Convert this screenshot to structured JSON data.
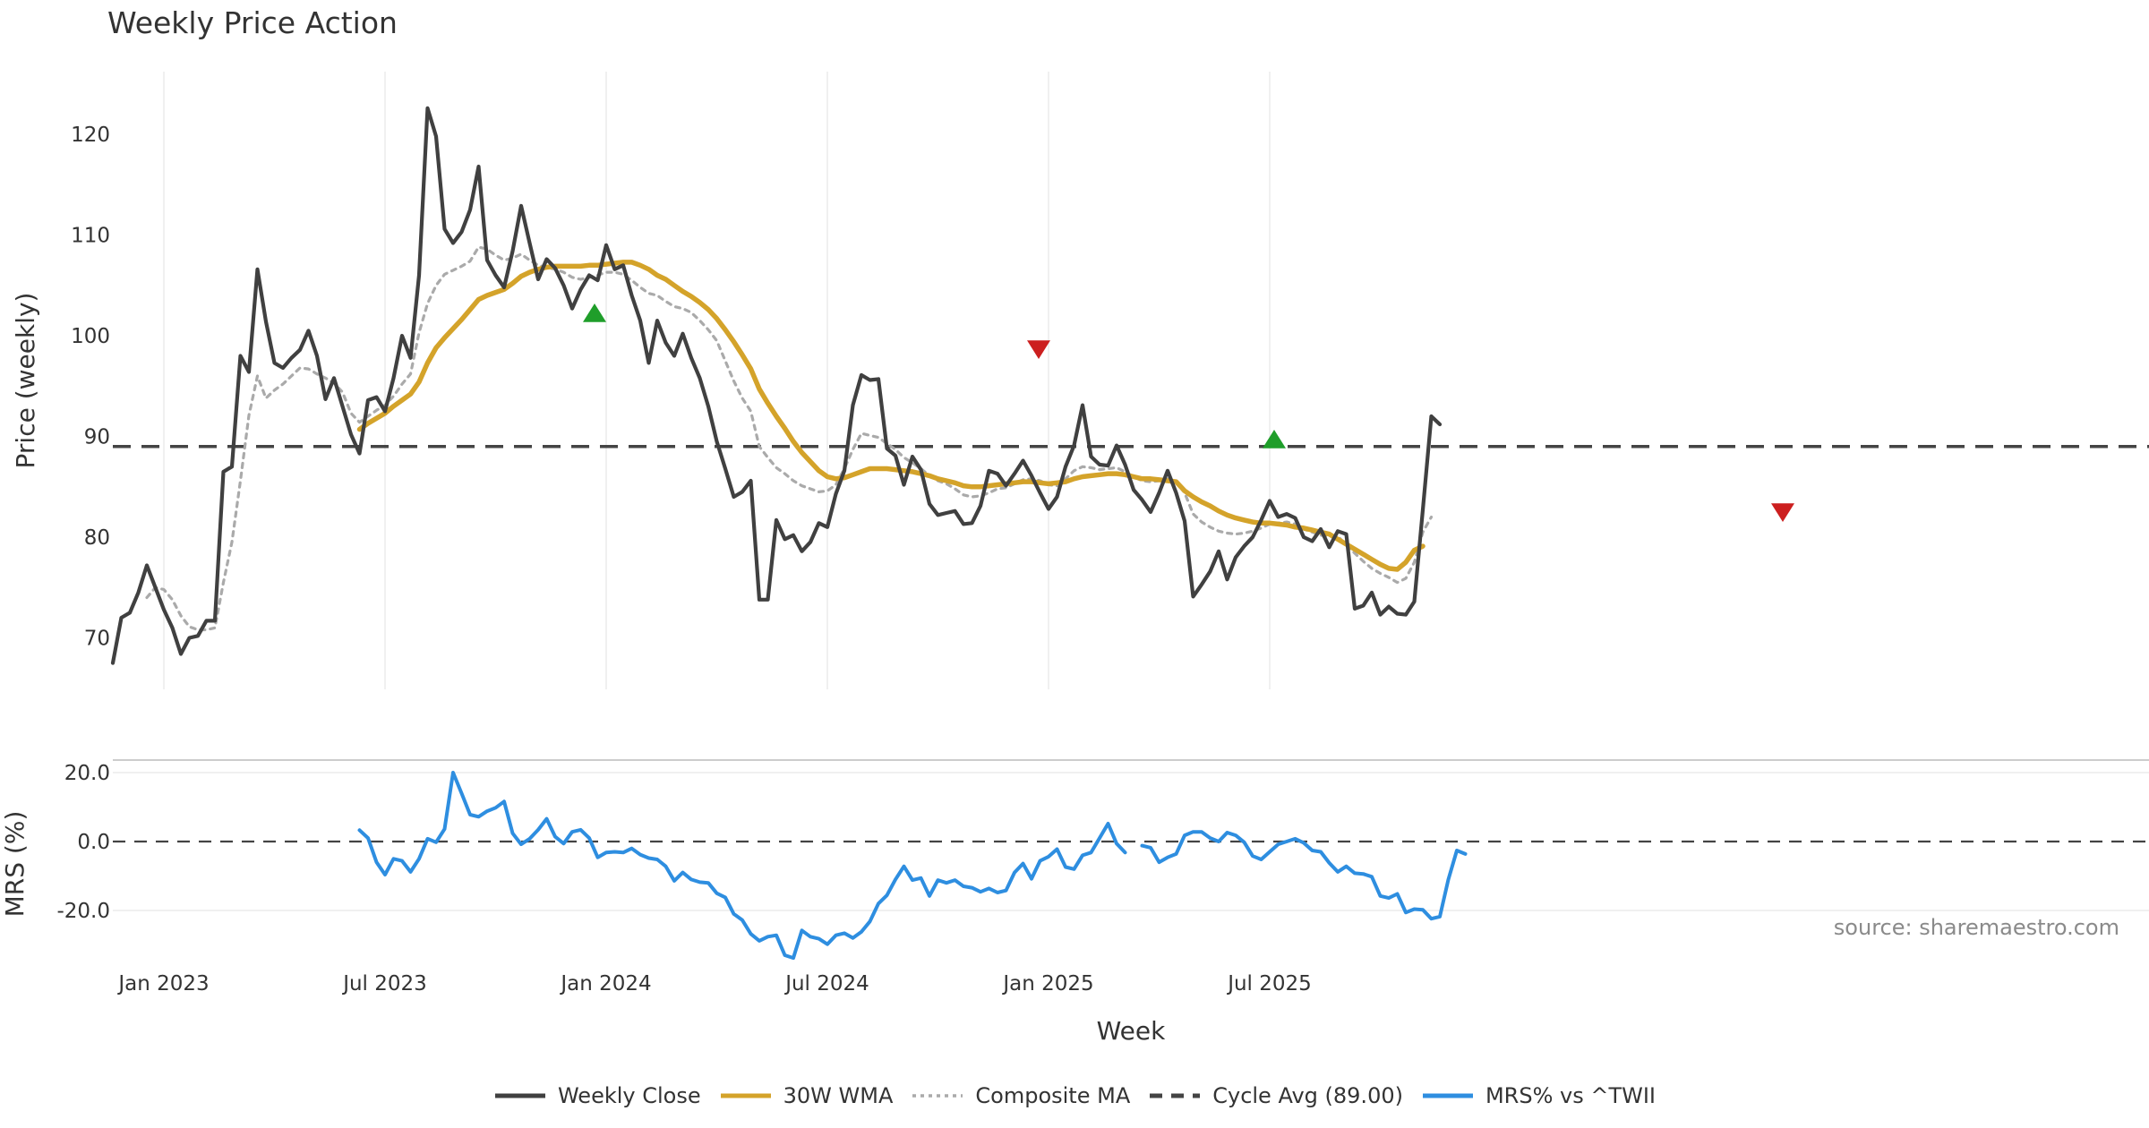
{
  "title": "Weekly Price Action",
  "source_note": "source: sharemaestro.com",
  "legend": [
    {
      "label": "Weekly Close",
      "color": "#404040",
      "style": "solid"
    },
    {
      "label": "30W WMA",
      "color": "#d4a32a",
      "style": "solid"
    },
    {
      "label": "Composite MA",
      "color": "#aaaaaa",
      "style": "dotted"
    },
    {
      "label": "Cycle Avg (89.00)",
      "color": "#444444",
      "style": "dashed"
    },
    {
      "label": "MRS% vs ^TWII",
      "color": "#2e8ee0",
      "style": "solid"
    }
  ],
  "chart_data": [
    {
      "type": "line",
      "title": "Weekly Price Action",
      "xlabel": "",
      "ylabel": "Price (weekly)",
      "ylim": [
        65,
        126
      ],
      "x_tick_labels": [
        "Jan 2023",
        "Jul 2023",
        "Jan 2024",
        "Jul 2024",
        "Jan 2025",
        "Jul 2025"
      ],
      "x_tick_weeks": [
        6,
        32,
        58,
        84,
        110,
        136
      ],
      "y_ticks": [
        70,
        80,
        90,
        100,
        110,
        120
      ],
      "x_unit": "week index (0 = first weekly bar)",
      "cycle_avg": 89.0,
      "series": [
        {
          "name": "Weekly Close",
          "color": "#404040",
          "values": [
            67.5,
            72,
            72.5,
            74.5,
            77.2,
            75,
            72.8,
            71,
            68.4,
            70,
            70.2,
            71.7,
            71.7,
            86.5,
            87,
            98,
            96.4,
            106.6,
            101.4,
            97.3,
            96.8,
            97.8,
            98.6,
            100.5,
            98,
            93.7,
            95.8,
            93,
            90.2,
            88.3,
            93.6,
            93.9,
            92.5,
            95.8,
            100,
            97.8,
            106,
            122.6,
            119.8,
            110.6,
            109.2,
            110.3,
            112.5,
            116.8,
            107.5,
            106,
            104.8,
            108.4,
            112.9,
            109.2,
            105.6,
            107.6,
            106.7,
            105,
            102.7,
            104.6,
            106,
            105.5,
            109,
            106.6,
            107,
            104,
            101.5,
            97.3,
            101.5,
            99.3,
            98,
            100.2,
            97.8,
            95.8,
            93,
            89.5,
            86.8,
            84,
            84.5,
            85.6,
            73.8,
            73.8,
            81.7,
            79.8,
            80.2,
            78.6,
            79.5,
            81.4,
            81,
            84.3,
            86.6,
            93.1,
            96.1,
            95.6,
            95.7,
            88.8,
            88.1,
            85.2,
            88,
            86.7,
            83.3,
            82.2,
            82.4,
            82.6,
            81.3,
            81.4,
            83.1,
            86.6,
            86.3,
            85.1,
            86.3,
            87.6,
            86.1,
            84.4,
            82.8,
            84,
            87,
            89.1,
            93.1,
            88,
            87.2,
            87.1,
            89.1,
            87.2,
            84.7,
            83.7,
            82.5,
            84.4,
            86.6,
            84.4,
            81.6,
            74.1,
            75.3,
            76.6,
            78.6,
            75.8,
            78,
            79.1,
            80,
            81.7,
            83.6,
            82,
            82.3,
            81.9,
            80,
            79.6,
            80.8,
            79,
            80.6,
            80.3,
            72.9,
            73.2,
            74.5,
            72.3,
            73.1,
            72.4,
            72.3,
            73.6,
            82.7,
            92,
            91.2
          ]
        },
        {
          "name": "30W WMA",
          "color": "#d4a32a",
          "values": [
            null,
            null,
            null,
            null,
            null,
            null,
            null,
            null,
            null,
            null,
            null,
            null,
            null,
            null,
            null,
            null,
            null,
            null,
            null,
            null,
            null,
            null,
            null,
            null,
            null,
            null,
            null,
            null,
            null,
            90.7,
            91.3,
            91.8,
            92.3,
            93,
            93.6,
            94.2,
            95.4,
            97.3,
            98.8,
            99.8,
            100.7,
            101.6,
            102.6,
            103.6,
            104,
            104.3,
            104.6,
            105.2,
            105.9,
            106.3,
            106.6,
            106.8,
            106.9,
            106.9,
            106.9,
            106.9,
            107,
            107,
            107.1,
            107.2,
            107.3,
            107.3,
            107,
            106.6,
            106,
            105.6,
            105,
            104.4,
            103.9,
            103.3,
            102.6,
            101.7,
            100.6,
            99.4,
            98.1,
            96.7,
            94.7,
            93.3,
            92,
            90.8,
            89.5,
            88.4,
            87.5,
            86.6,
            86,
            85.8,
            85.9,
            86.2,
            86.5,
            86.8,
            86.8,
            86.8,
            86.7,
            86.6,
            86.5,
            86.3,
            86.1,
            85.8,
            85.6,
            85.4,
            85.1,
            85,
            85,
            85.1,
            85.2,
            85.3,
            85.4,
            85.5,
            85.5,
            85.4,
            85.3,
            85.4,
            85.5,
            85.8,
            86,
            86.1,
            86.2,
            86.3,
            86.3,
            86.2,
            86,
            85.8,
            85.8,
            85.7,
            85.6,
            85.5,
            84.6,
            84,
            83.5,
            83.1,
            82.6,
            82.2,
            81.9,
            81.7,
            81.5,
            81.4,
            81.4,
            81.3,
            81.2,
            81,
            80.9,
            80.7,
            80.5,
            80.3,
            79.8,
            79.3,
            78.8,
            78.3,
            77.8,
            77.3,
            76.9,
            76.8,
            77.5,
            78.7,
            79.1
          ]
        },
        {
          "name": "Composite MA",
          "color": "#aaaaaa",
          "values": [
            null,
            null,
            null,
            null,
            74,
            75,
            74.8,
            73.8,
            72.2,
            71.1,
            70.8,
            70.8,
            71,
            75.5,
            79.5,
            85.6,
            92.1,
            96,
            93.8,
            94.6,
            95.2,
            96,
            96.8,
            96.7,
            96.2,
            95.8,
            95.3,
            94.4,
            92.3,
            91.4,
            92,
            92.6,
            93.1,
            94,
            95.2,
            96.2,
            100.3,
            103.2,
            105,
            106.1,
            106.5,
            106.9,
            107.4,
            108.8,
            108.6,
            108,
            107.5,
            107.7,
            108.1,
            107.5,
            107,
            106.8,
            106.6,
            106.3,
            105.8,
            105.6,
            105.8,
            106,
            106.3,
            106.3,
            106.1,
            105.5,
            104.8,
            104.2,
            104,
            103.4,
            102.9,
            102.7,
            102.3,
            101.5,
            100.6,
            99.5,
            97.5,
            95.5,
            93.8,
            92.5,
            89,
            87.9,
            86.9,
            86.3,
            85.6,
            85.1,
            84.8,
            84.5,
            84.6,
            85.2,
            86.8,
            88.7,
            90.3,
            90.1,
            89.9,
            89.3,
            88.7,
            87.9,
            87.4,
            86.8,
            86.1,
            85.6,
            85.3,
            84.8,
            84.2,
            84,
            84.1,
            84.4,
            84.8,
            84.9,
            85.3,
            85.7,
            85.8,
            85.6,
            85.2,
            85.1,
            85.8,
            86.6,
            87,
            86.9,
            86.7,
            86.8,
            86.9,
            86.5,
            86,
            85.6,
            85.5,
            85.6,
            85.8,
            85.5,
            84.4,
            82.3,
            81.5,
            81,
            80.6,
            80.4,
            80.3,
            80.4,
            80.6,
            80.9,
            81.3,
            81.4,
            81.5,
            81.3,
            80.8,
            80.5,
            80.2,
            80.1,
            80.1,
            79.2,
            78.4,
            77.6,
            76.9,
            76.4,
            76,
            75.5,
            75.9,
            77.5,
            80.5,
            82
          ]
        },
        {
          "name": "Cycle Avg (89.00)",
          "color": "#444444",
          "constant": 89.0
        }
      ]
    },
    {
      "type": "line",
      "title": "",
      "xlabel": "Week",
      "ylabel": "MRS (%)",
      "ylim": [
        -35,
        23
      ],
      "y_ticks": [
        -20.0,
        0.0,
        20.0
      ],
      "y_tick_labels": [
        "-20.0",
        "0.0",
        "20.0"
      ],
      "reference_line": 0.0,
      "series": [
        {
          "name": "MRS% vs ^TWII",
          "color": "#2e8ee0",
          "values": [
            null,
            null,
            null,
            null,
            null,
            null,
            null,
            null,
            null,
            null,
            null,
            null,
            null,
            null,
            null,
            null,
            null,
            null,
            null,
            null,
            null,
            null,
            null,
            null,
            null,
            null,
            null,
            null,
            null,
            3.3,
            1,
            -6,
            -9.6,
            -5,
            -5.6,
            -8.8,
            -5,
            0.8,
            -0.2,
            3.6,
            20,
            14,
            7.8,
            7.2,
            8.8,
            9.8,
            11.6,
            2.4,
            -0.8,
            0.8,
            3.4,
            6.6,
            1.4,
            -0.6,
            2.8,
            3.4,
            1,
            -4.6,
            -3.2,
            -3,
            -3.2,
            -2,
            -3.8,
            -4.8,
            -5.2,
            -7.2,
            -11.4,
            -9,
            -11,
            -11.8,
            -12,
            -15,
            -16.2,
            -21,
            -22.8,
            -26.8,
            -28.8,
            -27.6,
            -27.2,
            -33,
            -33.8,
            -25.8,
            -27.6,
            -28.2,
            -29.8,
            -27.2,
            -26.6,
            -28,
            -26.2,
            -23.2,
            -18,
            -15.6,
            -11,
            -7.2,
            -11.2,
            -10.6,
            -15.8,
            -11.2,
            -12,
            -11.2,
            -13,
            -13.4,
            -14.6,
            -13.6,
            -14.8,
            -14.2,
            -9,
            -6.4,
            -10.8,
            -5.6,
            -4.4,
            -2.2,
            -7.4,
            -8,
            -4,
            -3.2,
            1,
            5.2,
            -0.6,
            -3.2,
            null,
            -1.2,
            -1.8,
            -6,
            -4.6,
            -3.6,
            1.8,
            2.8,
            2.8,
            1,
            0,
            2.6,
            1.8,
            -0.2,
            -4.2,
            -5.2,
            -3,
            -0.8,
            0,
            0.8,
            -0.4,
            -2.6,
            -3,
            -6.2,
            -8.8,
            -7.2,
            -9.2,
            -9.4,
            -10.2,
            -15.8,
            -16.4,
            -15.2,
            -20.6,
            -19.6,
            -19.8,
            -22.4,
            -21.8,
            -11,
            -2.6,
            -3.6
          ]
        }
      ]
    }
  ]
}
